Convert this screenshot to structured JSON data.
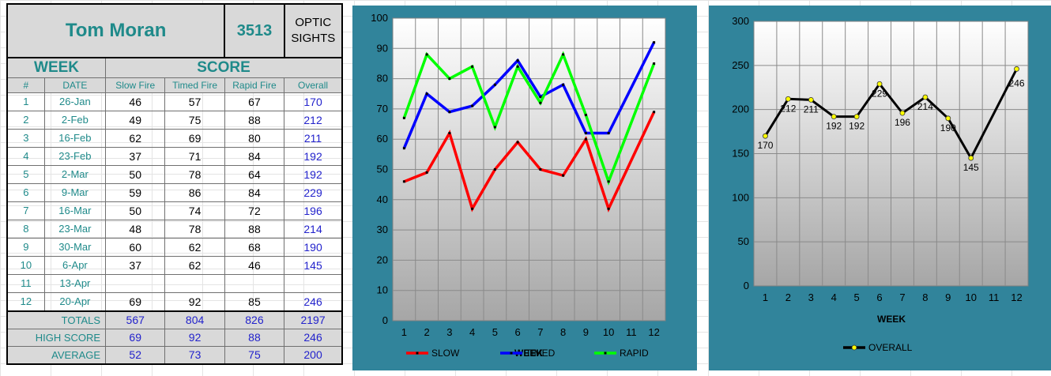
{
  "header": {
    "name": "Tom Moran",
    "id": "3513",
    "class_line1": "OPTIC",
    "class_line2": "SIGHTS"
  },
  "sections": {
    "week": "WEEK",
    "score": "SCORE"
  },
  "columns": {
    "num": "#",
    "date": "DATE",
    "slow": "Slow Fire",
    "timed": "Timed Fire",
    "rapid": "Rapid Fire",
    "overall": "Overall"
  },
  "rows": [
    {
      "num": "1",
      "date": "26-Jan",
      "slow": "46",
      "timed": "57",
      "rapid": "67",
      "overall": "170"
    },
    {
      "num": "2",
      "date": "2-Feb",
      "slow": "49",
      "timed": "75",
      "rapid": "88",
      "overall": "212"
    },
    {
      "num": "3",
      "date": "16-Feb",
      "slow": "62",
      "timed": "69",
      "rapid": "80",
      "overall": "211"
    },
    {
      "num": "4",
      "date": "23-Feb",
      "slow": "37",
      "timed": "71",
      "rapid": "84",
      "overall": "192"
    },
    {
      "num": "5",
      "date": "2-Mar",
      "slow": "50",
      "timed": "78",
      "rapid": "64",
      "overall": "192"
    },
    {
      "num": "6",
      "date": "9-Mar",
      "slow": "59",
      "timed": "86",
      "rapid": "84",
      "overall": "229"
    },
    {
      "num": "7",
      "date": "16-Mar",
      "slow": "50",
      "timed": "74",
      "rapid": "72",
      "overall": "196"
    },
    {
      "num": "8",
      "date": "23-Mar",
      "slow": "48",
      "timed": "78",
      "rapid": "88",
      "overall": "214"
    },
    {
      "num": "9",
      "date": "30-Mar",
      "slow": "60",
      "timed": "62",
      "rapid": "68",
      "overall": "190"
    },
    {
      "num": "10",
      "date": "6-Apr",
      "slow": "37",
      "timed": "62",
      "rapid": "46",
      "overall": "145"
    },
    {
      "num": "11",
      "date": "13-Apr",
      "slow": "",
      "timed": "",
      "rapid": "",
      "overall": ""
    },
    {
      "num": "12",
      "date": "20-Apr",
      "slow": "69",
      "timed": "92",
      "rapid": "85",
      "overall": "246"
    }
  ],
  "summary": {
    "totals": {
      "label": "TOTALS",
      "slow": "567",
      "timed": "804",
      "rapid": "826",
      "overall": "2197"
    },
    "high": {
      "label": "HIGH SCORE",
      "slow": "69",
      "timed": "92",
      "rapid": "88",
      "overall": "246"
    },
    "average": {
      "label": "AVERAGE",
      "slow": "52",
      "timed": "73",
      "rapid": "75",
      "overall": "200"
    }
  },
  "chart_data": [
    {
      "type": "line",
      "title": "",
      "xlabel": "WEEK",
      "ylabel": "",
      "ylim": [
        0,
        100
      ],
      "yticks": [
        0,
        10,
        20,
        30,
        40,
        50,
        60,
        70,
        80,
        90,
        100
      ],
      "categories": [
        "1",
        "2",
        "3",
        "4",
        "5",
        "6",
        "7",
        "8",
        "9",
        "10",
        "11",
        "12"
      ],
      "grid": true,
      "legend": "bottom",
      "series": [
        {
          "name": "SLOW",
          "color": "#ff0000",
          "values": [
            46,
            49,
            62,
            37,
            50,
            59,
            50,
            48,
            60,
            37,
            null,
            69
          ]
        },
        {
          "name": "TIMED",
          "color": "#0000ff",
          "values": [
            57,
            75,
            69,
            71,
            78,
            86,
            74,
            78,
            62,
            62,
            null,
            92
          ]
        },
        {
          "name": "RAPID",
          "color": "#00ff00",
          "values": [
            67,
            88,
            80,
            84,
            64,
            84,
            72,
            88,
            68,
            46,
            null,
            85
          ]
        }
      ]
    },
    {
      "type": "line",
      "title": "",
      "xlabel": "WEEK",
      "ylabel": "",
      "ylim": [
        0,
        300
      ],
      "yticks": [
        0,
        50,
        100,
        150,
        200,
        250,
        300
      ],
      "categories": [
        "1",
        "2",
        "3",
        "4",
        "5",
        "6",
        "7",
        "8",
        "9",
        "10",
        "11",
        "12"
      ],
      "grid": true,
      "legend": "bottom",
      "series": [
        {
          "name": "OVERALL",
          "color": "#000000",
          "marker_color": "#ffff00",
          "values": [
            170,
            212,
            211,
            192,
            192,
            229,
            196,
            214,
            190,
            145,
            null,
            246
          ]
        }
      ]
    }
  ]
}
